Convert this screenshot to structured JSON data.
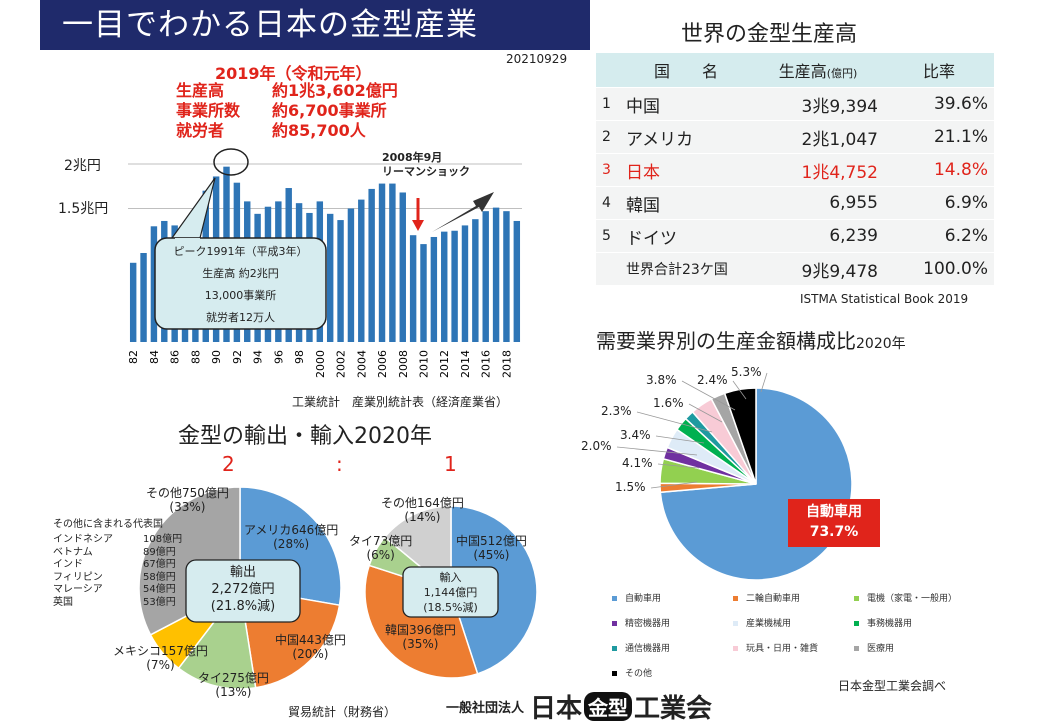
{
  "header": {
    "title": "一目でわかる日本の金型産業",
    "date": "20210929"
  },
  "summary": {
    "year": "2019年（令和元年）",
    "rows": [
      {
        "label": "生産高",
        "value": "約1兆3,602億円"
      },
      {
        "label": "事業所数",
        "value": "約6,700事業所"
      },
      {
        "label": "就労者",
        "value": "約85,700人"
      }
    ]
  },
  "history_chart": {
    "ylabels": [
      "2兆円",
      "1.5兆円"
    ],
    "xlabels": [
      "82",
      "84",
      "86",
      "88",
      "90",
      "92",
      "94",
      "96",
      "98",
      "2000",
      "2002",
      "2004",
      "2006",
      "2008",
      "2010",
      "2012",
      "2014",
      "2016",
      "2018"
    ],
    "peak_callout": [
      "ピーク1991年（平成3年）",
      "生産高 約2兆円",
      "13,000事業所",
      "就労者12万人"
    ],
    "lehman_note": [
      "2008年9月",
      "リーマンショック"
    ],
    "source": "工業統計　産業別統計表（経済産業省）"
  },
  "chart_data": [
    {
      "type": "bar",
      "categories": [
        "1982",
        "1983",
        "1984",
        "1985",
        "1986",
        "1987",
        "1988",
        "1989",
        "1990",
        "1991",
        "1992",
        "1993",
        "1994",
        "1995",
        "1996",
        "1997",
        "1998",
        "1999",
        "2000",
        "2001",
        "2002",
        "2003",
        "2004",
        "2005",
        "2006",
        "2007",
        "2008",
        "2009",
        "2010",
        "2011",
        "2012",
        "2013",
        "2014",
        "2015",
        "2016",
        "2017",
        "2018",
        "2019"
      ],
      "values": [
        0.89,
        1.0,
        1.3,
        1.36,
        1.31,
        1.3,
        1.48,
        1.7,
        1.86,
        1.97,
        1.79,
        1.58,
        1.44,
        1.52,
        1.58,
        1.73,
        1.56,
        1.45,
        1.58,
        1.44,
        1.37,
        1.5,
        1.6,
        1.72,
        1.78,
        1.78,
        1.68,
        1.2,
        1.1,
        1.18,
        1.24,
        1.25,
        1.31,
        1.38,
        1.47,
        1.51,
        1.47,
        1.36
      ],
      "ylim": [
        0,
        2.4
      ]
    },
    {
      "type": "pie",
      "labels": [
        "アメリカ",
        "中国",
        "タイ",
        "メキシコ",
        "その他"
      ],
      "values": [
        28,
        20,
        13,
        7,
        33
      ],
      "colors": [
        "#5b9bd5",
        "#ed7d31",
        "#a9d18e",
        "#ffc000",
        "#a5a5a5"
      ]
    },
    {
      "type": "pie",
      "labels": [
        "中国",
        "韓国",
        "タイ",
        "その他"
      ],
      "values": [
        45,
        35,
        6,
        14
      ],
      "colors": [
        "#5b9bd5",
        "#ed7d31",
        "#a9d18e",
        "#d0d0d0"
      ]
    },
    {
      "type": "pie",
      "labels": [
        "自動車用",
        "二輪自動車用",
        "電機（家電・一般用）",
        "精密機器用",
        "産業機械用",
        "事務機器用",
        "通信機器用",
        "玩具・日用・雑貨",
        "医療用",
        "その他"
      ],
      "values": [
        73.7,
        1.5,
        4.1,
        2.0,
        3.4,
        2.3,
        1.6,
        3.8,
        2.4,
        5.3
      ],
      "colors": [
        "#5b9bd5",
        "#ed7d31",
        "#92d050",
        "#7030a0",
        "#deebf7",
        "#00b050",
        "#1f9aa0",
        "#f8cbd6",
        "#a5a5a5",
        "#000000"
      ]
    }
  ],
  "trade": {
    "title": "金型の輸出・輸入2020年",
    "ratio": [
      "2",
      ":",
      "1"
    ],
    "export": {
      "center": [
        "輸出",
        "2,272億円",
        "(21.8%減)"
      ],
      "labels": [
        [
          "アメリカ646億円",
          "(28%)"
        ],
        [
          "中国443億円",
          "(20%)"
        ],
        [
          "タイ275億円",
          "(13%)"
        ],
        [
          "メキシコ157億円",
          "(7%)"
        ],
        [
          "その他750億円",
          "(33%)"
        ]
      ],
      "others_title": "その他に含まれる代表国",
      "others": [
        {
          "country": "インドネシア",
          "value": "108億円"
        },
        {
          "country": "ベトナム",
          "value": "89億円"
        },
        {
          "country": "インド",
          "value": "67億円"
        },
        {
          "country": "フィリピン",
          "value": "58億円"
        },
        {
          "country": "マレーシア",
          "value": "54億円"
        },
        {
          "country": "英国",
          "value": "53億円"
        }
      ]
    },
    "import": {
      "center": [
        "輸入",
        "1,144億円",
        "(18.5%減)"
      ],
      "labels": [
        [
          "中国512億円",
          "(45%)"
        ],
        [
          "韓国396億円",
          "(35%)"
        ],
        [
          "タイ73億円",
          "(6%)"
        ],
        [
          "その他164億円",
          "(14%)"
        ]
      ]
    },
    "source": "貿易統計（財務省）"
  },
  "world": {
    "title": "世界の金型生産高",
    "headers": {
      "country": "国　　名",
      "prod": "生産高",
      "prod_unit": "(億円)",
      "ratio": "比率"
    },
    "rows": [
      {
        "rank": "1",
        "country": "中国",
        "prod": "3兆9,394",
        "ratio": "39.6%"
      },
      {
        "rank": "2",
        "country": "アメリカ",
        "prod": "2兆1,047",
        "ratio": "21.1%"
      },
      {
        "rank": "3",
        "country": "日本",
        "prod": "1兆4,752",
        "ratio": "14.8%"
      },
      {
        "rank": "4",
        "country": "韓国",
        "prod": "6,955",
        "ratio": "6.9%"
      },
      {
        "rank": "5",
        "country": "ドイツ",
        "prod": "6,239",
        "ratio": "6.2%"
      },
      {
        "rank": "",
        "country": "世界合計23ケ国",
        "prod": "9兆9,478",
        "ratio": "100.0%"
      }
    ],
    "source": "ISTMA Statistical Book 2019"
  },
  "demand": {
    "title": "需要業界別の生産金額構成比",
    "year": "2020年",
    "pct_labels": [
      "73.7%",
      "1.5%",
      "4.1%",
      "2.0%",
      "3.4%",
      "2.3%",
      "1.6%",
      "3.8%",
      "2.4%",
      "5.3%"
    ],
    "main_box": [
      "自動車用",
      "73.7%"
    ],
    "legend": [
      "自動車用",
      "二輪自動車用",
      "電機（家電・一般用）",
      "精密機器用",
      "産業機械用",
      "事務機器用",
      "通信機器用",
      "玩具・日用・雑貨",
      "医療用",
      "その他"
    ],
    "source": "日本金型工業会調べ"
  },
  "footer": {
    "org_prefix": "一般社団法人",
    "org_a": "日本",
    "org_b": "金型",
    "org_c": "工業会"
  },
  "colors": {
    "title_bg": "#1f2a6b",
    "accent_red": "#e0241b",
    "bar_blue": "#2e75b6"
  }
}
